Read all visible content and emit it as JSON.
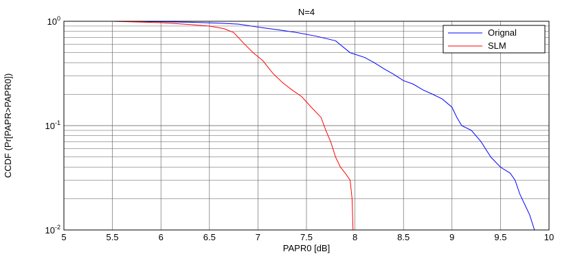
{
  "chart_data": {
    "type": "line",
    "title": "N=4",
    "xlabel": "PAPR0 [dB]",
    "ylabel": "CCDF (Pr[PAPR>PAPR0])",
    "xlim": [
      5,
      10
    ],
    "ylim": [
      0.01,
      1
    ],
    "yscale": "log",
    "grid": true,
    "legend_position": "top-right",
    "x_ticks": [
      "5",
      "5.5",
      "6",
      "6.5",
      "7",
      "7.5",
      "8",
      "8.5",
      "9",
      "9.5",
      "10"
    ],
    "y_ticks": [
      {
        "base": "10",
        "exp": "-2",
        "value": 0.01
      },
      {
        "base": "10",
        "exp": "-1",
        "value": 0.1
      },
      {
        "base": "10",
        "exp": "0",
        "value": 1
      }
    ],
    "series": [
      {
        "name": "Orignal",
        "color": "#0000ff",
        "points": [
          [
            5.5,
            1.0
          ],
          [
            6.0,
            0.99
          ],
          [
            6.3,
            0.98
          ],
          [
            6.6,
            0.96
          ],
          [
            6.8,
            0.94
          ],
          [
            7.0,
            0.88
          ],
          [
            7.2,
            0.83
          ],
          [
            7.4,
            0.78
          ],
          [
            7.6,
            0.72
          ],
          [
            7.8,
            0.65
          ],
          [
            7.95,
            0.5
          ],
          [
            8.1,
            0.45
          ],
          [
            8.2,
            0.4
          ],
          [
            8.3,
            0.35
          ],
          [
            8.4,
            0.31
          ],
          [
            8.5,
            0.27
          ],
          [
            8.6,
            0.25
          ],
          [
            8.7,
            0.22
          ],
          [
            8.8,
            0.2
          ],
          [
            8.9,
            0.18
          ],
          [
            9.0,
            0.15
          ],
          [
            9.05,
            0.12
          ],
          [
            9.1,
            0.1
          ],
          [
            9.2,
            0.09
          ],
          [
            9.3,
            0.07
          ],
          [
            9.4,
            0.05
          ],
          [
            9.5,
            0.04
          ],
          [
            9.6,
            0.035
          ],
          [
            9.65,
            0.03
          ],
          [
            9.7,
            0.022
          ],
          [
            9.8,
            0.014
          ],
          [
            9.85,
            0.01
          ]
        ]
      },
      {
        "name": "SLM",
        "color": "#ff0000",
        "points": [
          [
            5.5,
            1.0
          ],
          [
            6.0,
            0.97
          ],
          [
            6.3,
            0.93
          ],
          [
            6.5,
            0.9
          ],
          [
            6.65,
            0.85
          ],
          [
            6.75,
            0.78
          ],
          [
            6.85,
            0.62
          ],
          [
            6.95,
            0.5
          ],
          [
            7.05,
            0.42
          ],
          [
            7.15,
            0.32
          ],
          [
            7.25,
            0.26
          ],
          [
            7.35,
            0.22
          ],
          [
            7.45,
            0.19
          ],
          [
            7.55,
            0.15
          ],
          [
            7.65,
            0.12
          ],
          [
            7.7,
            0.09
          ],
          [
            7.75,
            0.07
          ],
          [
            7.8,
            0.05
          ],
          [
            7.85,
            0.04
          ],
          [
            7.9,
            0.035
          ],
          [
            7.95,
            0.03
          ],
          [
            7.97,
            0.02
          ],
          [
            7.98,
            0.01
          ]
        ]
      }
    ]
  }
}
